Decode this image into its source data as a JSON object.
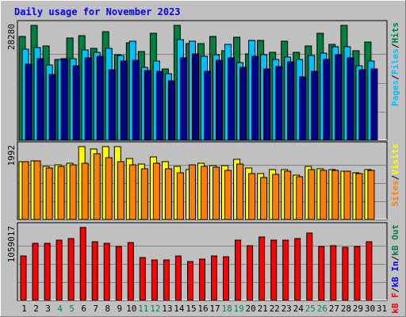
{
  "chart_data": {
    "type": "bar",
    "title": "Daily usage for November 2023",
    "days": [
      "1",
      "2",
      "3",
      "4",
      "5",
      "6",
      "7",
      "8",
      "9",
      "10",
      "11",
      "12",
      "13",
      "14",
      "15",
      "16",
      "17",
      "18",
      "19",
      "20",
      "21",
      "22",
      "23",
      "24",
      "25",
      "26",
      "27",
      "28",
      "29",
      "30",
      "31"
    ],
    "weekend_days": [
      "4",
      "5",
      "11",
      "12",
      "18",
      "19",
      "25",
      "26"
    ],
    "panels": [
      {
        "name": "hits-files-pages",
        "ymax_label": "28280",
        "ymax": 28280,
        "legend": [
          "Pages",
          "/",
          "Files",
          "/",
          "Hits"
        ],
        "series": [
          {
            "name": "Hits",
            "color": "#008040",
            "values": [
              25600,
              28280,
              23300,
              19800,
              25200,
              25800,
              22600,
              26800,
              21000,
              23900,
              21900,
              26400,
              17600,
              28280,
              23800,
              23700,
              25500,
              22000,
              25400,
              21300,
              24600,
              21600,
              24300,
              21600,
              23300,
              26300,
              23600,
              28280,
              22000,
              24100,
              0
            ]
          },
          {
            "name": "Files",
            "color": "#00c0ff",
            "values": [
              22500,
              22900,
              18600,
              19800,
              20100,
              22300,
              21600,
              22600,
              20800,
              24400,
              17900,
              19500,
              16300,
              24700,
              24300,
              20600,
              21100,
              23600,
              19100,
              24600,
              21100,
              19900,
              20400,
              19800,
              20800,
              21400,
              23100,
              23100,
              18300,
              19600,
              0
            ]
          },
          {
            "name": "Pages",
            "color": "#00008b",
            "values": [
              18800,
              20000,
              16200,
              20100,
              18400,
              20300,
              20600,
              17400,
              19600,
              19700,
              17200,
              17000,
              14700,
              20200,
              21200,
              17000,
              19700,
              20300,
              18000,
              20700,
              17500,
              18200,
              19300,
              15600,
              16900,
              19800,
              21000,
              20300,
              17300,
              17600,
              0
            ]
          }
        ]
      },
      {
        "name": "visits-sites",
        "ymax_label": "1992",
        "ymax": 1992,
        "legend": [
          "Sites",
          "/",
          "Visits"
        ],
        "series": [
          {
            "name": "Visits",
            "color": "#ffff00",
            "values": [
              1580,
              1600,
              1460,
              1490,
              1540,
              1992,
              1920,
              1992,
              1992,
              1660,
              1520,
              1700,
              1590,
              1450,
              1370,
              1530,
              1480,
              1470,
              1640,
              1400,
              1260,
              1360,
              1370,
              1220,
              1460,
              1390,
              1360,
              1310,
              1270,
              1360,
              0
            ]
          },
          {
            "name": "Sites",
            "color": "#ff8000",
            "values": [
              1580,
              1600,
              1410,
              1450,
              1500,
              1540,
              1790,
              1680,
              1570,
              1500,
              1380,
              1540,
              1380,
              1270,
              1500,
              1450,
              1430,
              1340,
              1520,
              1260,
              1140,
              1230,
              1310,
              1170,
              1370,
              1340,
              1350,
              1320,
              1260,
              1340,
              0
            ]
          }
        ]
      },
      {
        "name": "kbytes",
        "ymax_label": "1059017",
        "ymax": 1059017,
        "legend": [
          "kB F",
          "/",
          "kB In",
          "/",
          "kB Out"
        ],
        "series": [
          {
            "name": "kB F",
            "color": "#ff0000",
            "values": [
              640000,
              830000,
              830000,
              870000,
              900000,
              1059017,
              850000,
              830000,
              780000,
              840000,
              620000,
              590000,
              590000,
              640000,
              560000,
              600000,
              650000,
              630000,
              870000,
              800000,
              920000,
              880000,
              870000,
              900000,
              980000,
              780000,
              790000,
              770000,
              780000,
              850000,
              0
            ]
          }
        ]
      }
    ]
  }
}
